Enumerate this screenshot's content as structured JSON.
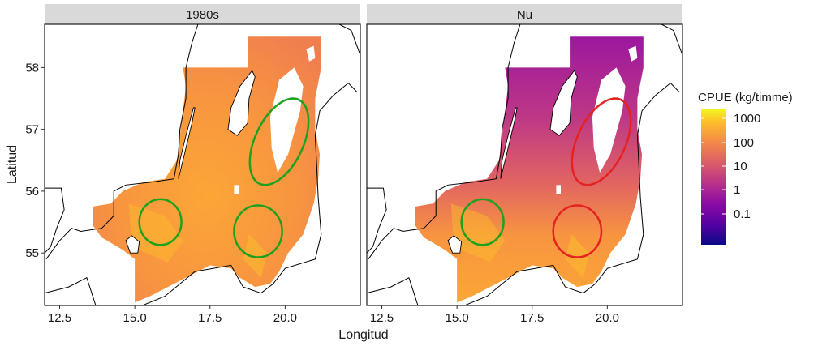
{
  "panels": [
    {
      "strip_label": "1980s",
      "ellipses": [
        {
          "lon": 19.8,
          "lat": 56.8,
          "rx_lon": 0.8,
          "ry_lat": 0.75,
          "rotation": 25,
          "color": "#1fa11f"
        },
        {
          "lon": 15.85,
          "lat": 55.5,
          "rx_lon": 0.7,
          "ry_lat": 0.37,
          "rotation": 0,
          "color": "#1fa11f"
        },
        {
          "lon": 19.1,
          "lat": 55.35,
          "rx_lon": 0.8,
          "ry_lat": 0.42,
          "rotation": 0,
          "color": "#1fa11f"
        }
      ],
      "fill_tone": "high"
    },
    {
      "strip_label": "Nu",
      "ellipses": [
        {
          "lon": 19.8,
          "lat": 56.8,
          "rx_lon": 0.8,
          "ry_lat": 0.75,
          "rotation": 25,
          "color": "#e52222"
        },
        {
          "lon": 15.85,
          "lat": 55.5,
          "rx_lon": 0.7,
          "ry_lat": 0.37,
          "rotation": 0,
          "color": "#1fa11f"
        },
        {
          "lon": 19.0,
          "lat": 55.35,
          "rx_lon": 0.8,
          "ry_lat": 0.42,
          "rotation": 0,
          "color": "#e52222"
        }
      ],
      "fill_tone": "low"
    }
  ],
  "axes": {
    "x_label": "Longitud",
    "y_label": "Latitud",
    "x_ticks": [
      "12.5",
      "15.0",
      "17.5",
      "20.0"
    ],
    "x_tick_values": [
      12.5,
      15.0,
      17.5,
      20.0
    ],
    "y_ticks": [
      "55",
      "56",
      "57",
      "58"
    ],
    "y_tick_values": [
      55,
      56,
      57,
      58
    ],
    "x_range": [
      12.0,
      22.5
    ],
    "y_range": [
      54.15,
      58.7
    ]
  },
  "legend": {
    "title": "CPUE (kg/timme)",
    "labels": [
      "1000",
      "100",
      "10",
      "1",
      "0.1"
    ],
    "colormap": "plasma",
    "scale": "log"
  },
  "colors": {
    "strip": "#d9d9d9",
    "coast": "#000000",
    "land": "#ffffff",
    "good": "#1fa11f",
    "bad": "#e52222"
  }
}
